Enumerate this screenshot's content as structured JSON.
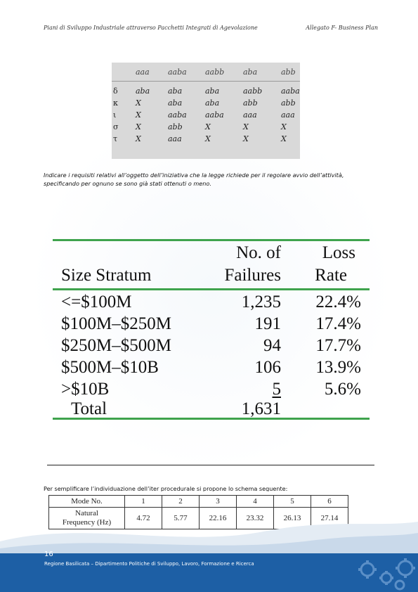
{
  "header": {
    "left": "Piani di Sviluppo Industriale attraverso Pacchetti Integrati di Agevolazione",
    "right": "Allegato F- Business Plan"
  },
  "table1": {
    "columns": [
      "",
      "aaa",
      "aaba",
      "aabb",
      "aba",
      "abb"
    ],
    "rows": [
      [
        "δ",
        "aba",
        "aba",
        "aba",
        "aabb",
        "aaba"
      ],
      [
        "κ",
        "X",
        "aba",
        "aba",
        "abb",
        "abb"
      ],
      [
        "ι",
        "X",
        "aaba",
        "aaba",
        "aaa",
        "aaa"
      ],
      [
        "σ",
        "X",
        "abb",
        "X",
        "X",
        "X"
      ],
      [
        "τ",
        "X",
        "aaa",
        "X",
        "X",
        "X"
      ]
    ]
  },
  "paragraph1": "Indicare i requisiti relativi all’oggetto dell’iniziativa che la legge richiede per il regolare avvio dell’attività, specificando per ognuno se sono già stati ottenuti o meno.",
  "table2": {
    "headers": {
      "stratum": "Size Stratum",
      "failures_line1": "No. of",
      "failures_line2": "Failures",
      "rate_line1": "Loss",
      "rate_line2": "Rate"
    },
    "rows": [
      {
        "stratum": "<=$100M",
        "failures": "1,235",
        "rate": "22.4%"
      },
      {
        "stratum": "$100M–$250M",
        "failures": "191",
        "rate": "17.4%"
      },
      {
        "stratum": "$250M–$500M",
        "failures": "94",
        "rate": "17.7%"
      },
      {
        "stratum": "$500M–$10B",
        "failures": "106",
        "rate": "13.9%"
      },
      {
        "stratum": ">$10B",
        "failures": "5",
        "rate": "5.6%"
      }
    ],
    "total": {
      "label": "Total",
      "failures": "1,631"
    }
  },
  "paragraph2": "Per semplificare l’individuazione dell’iter procedurale si propone lo schema seguente:",
  "table3": {
    "mode_label": "Mode No.",
    "freq_label_line1": "Natural",
    "freq_label_line2": "Frequency (Hz)",
    "modes": [
      "1",
      "2",
      "3",
      "4",
      "5",
      "6"
    ],
    "frequencies": [
      "4.72",
      "5.77",
      "22.16",
      "23.32",
      "26.13",
      "27.14"
    ]
  },
  "footer": {
    "page_number": "16",
    "text": "Regione Basilicata – Dipartimento Politiche di Sviluppo, Lavoro, Formazione e Ricerca",
    "band_color": "#1d5fa5"
  }
}
